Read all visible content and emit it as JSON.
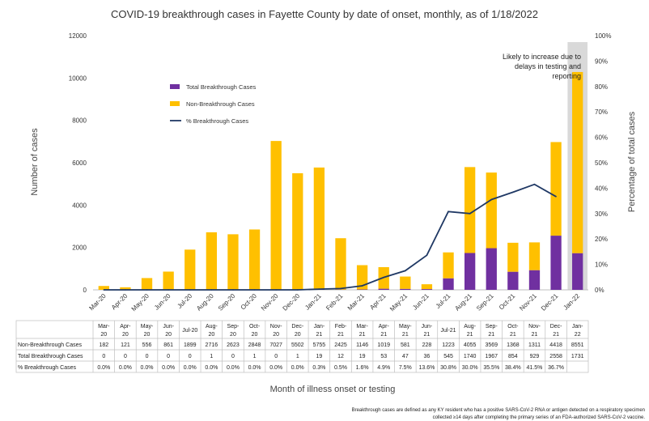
{
  "chart_data": {
    "type": "bar",
    "title": "COVID-19 breakthrough cases in Fayette County by date of onset, monthly, as of 1/18/2022",
    "xlabel": "Month of illness onset or testing",
    "ylabel": "Number of cases",
    "y2label": "Percentage of total cases",
    "ylim": [
      0,
      12000
    ],
    "y2lim": [
      0,
      100
    ],
    "yticks": [
      "0",
      "2000",
      "4000",
      "6000",
      "8000",
      "10000",
      "12000"
    ],
    "y2ticks": [
      "0%",
      "10%",
      "20%",
      "30%",
      "40%",
      "50%",
      "60%",
      "70%",
      "80%",
      "90%",
      "100%"
    ],
    "stacked": true,
    "legend_position": "upper-left",
    "categories": [
      "Mar-20",
      "Apr-20",
      "May-20",
      "Jun-20",
      "Jul-20",
      "Aug-20",
      "Sep-20",
      "Oct-20",
      "Nov-20",
      "Dec-20",
      "Jan-21",
      "Feb-21",
      "Mar-21",
      "Apr-21",
      "May-21",
      "Jun-21",
      "Jul-21",
      "Aug-21",
      "Sep-21",
      "Oct-21",
      "Nov-21",
      "Dec-21",
      "Jan-22"
    ],
    "table_labels": [
      "Mar-\n20",
      "Apr-\n20",
      "May-\n20",
      "Jun-\n20",
      "Jul-20",
      "Aug-\n20",
      "Sep-\n20",
      "Oct-\n20",
      "Nov-\n20",
      "Dec-\n20",
      "Jan-\n21",
      "Feb-\n21",
      "Mar-\n21",
      "Apr-\n21",
      "May-\n21",
      "Jun-\n21",
      "Jul-21",
      "Aug-\n21",
      "Sep-\n21",
      "Oct-\n21",
      "Nov-\n21",
      "Dec-\n21",
      "Jan-\n22"
    ],
    "series": [
      {
        "name": "Total Breakthrough Cases",
        "table_name": "Total Breakthrough Cases",
        "color": "#7030a0",
        "values": [
          0,
          0,
          0,
          0,
          0,
          1,
          0,
          1,
          0,
          1,
          19,
          12,
          19,
          53,
          47,
          36,
          545,
          1740,
          1967,
          854,
          929,
          2558,
          1731
        ]
      },
      {
        "name": "Non-Breakthrough Cases",
        "table_name": "Non-Breakthrough Cases",
        "color": "#ffc000",
        "values": [
          182,
          121,
          556,
          861,
          1899,
          2716,
          2623,
          2848,
          7027,
          5502,
          5755,
          2425,
          1146,
          1019,
          581,
          228,
          1223,
          4055,
          3569,
          1368,
          1311,
          4418,
          8551
        ]
      },
      {
        "name": "% Breakthrough Cases",
        "table_name": "% Breakthrough Cases",
        "color": "#1f3864",
        "axis": "right",
        "values": [
          0.0,
          0.0,
          0.0,
          0.0,
          0.0,
          0.0,
          0.0,
          0.0,
          0.0,
          0.0,
          0.3,
          0.5,
          1.6,
          4.9,
          7.5,
          13.6,
          30.8,
          30.0,
          35.5,
          38.4,
          41.5,
          36.7,
          null
        ],
        "labels": [
          "0.0%",
          "0.0%",
          "0.0%",
          "0.0%",
          "0.0%",
          "0.0%",
          "0.0%",
          "0.0%",
          "0.0%",
          "0.0%",
          "0.3%",
          "0.5%",
          "1.6%",
          "4.9%",
          "7.5%",
          "13.6%",
          "30.8%",
          "30.0%",
          "35.5%",
          "38.4%",
          "41.5%",
          "36.7%",
          ""
        ]
      }
    ],
    "highlight": {
      "category": "Jan-22",
      "lines": [
        "Likely to increase due to",
        "delays in testing and",
        "reporting"
      ]
    },
    "footnote": [
      "Breakthrough cases are defined as any KY resident who has a positive SARS-CoV-2 RNA or antigen detected on a respiratory specimen",
      "collected ≥14 days after completing the primary series of an FDA-authorized SARS-CoV-2 vaccine."
    ]
  }
}
